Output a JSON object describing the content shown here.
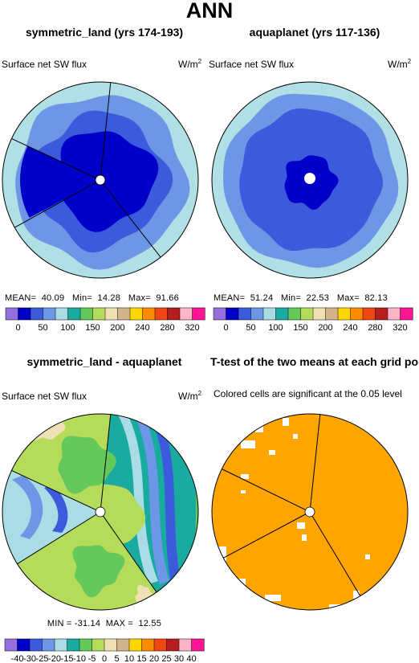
{
  "page_title": "ANN",
  "chart_data": [
    {
      "type": "heatmap",
      "title": "symmetric_land (yrs 174-193)",
      "variable": "Surface net SW flux",
      "units_text": "W/m",
      "units_exp": "2",
      "stats": {
        "mean": "40.09",
        "min": "14.28",
        "max": "91.66"
      },
      "stat_labels": {
        "mean": "MEAN=",
        "min": "Min=",
        "max": "Max="
      },
      "colorbar_ticks": [
        "0",
        "50",
        "100",
        "150",
        "200",
        "240",
        "280",
        "320"
      ],
      "colorbar_colors": [
        "#9370db",
        "#0000c8",
        "#3c5adc",
        "#6e96e6",
        "#aadce6",
        "#19aaa0",
        "#64c85a",
        "#b4dc5a",
        "#f0e1b4",
        "#d2b48c",
        "#ffd700",
        "#ff8c00",
        "#f04614",
        "#b41e1e",
        "#ffb4c8",
        "#ff1493"
      ],
      "levels": [
        "#b0e0e6",
        "#6e96e6",
        "#3c5adc",
        "#0000c8"
      ]
    },
    {
      "type": "heatmap",
      "title": "aquaplanet (yrs 117-136)",
      "variable": "Surface net SW flux",
      "units_text": "W/m",
      "units_exp": "2",
      "stats": {
        "mean": "51.24",
        "min": "22.53",
        "max": "82.13"
      },
      "stat_labels": {
        "mean": "MEAN=",
        "min": "Min=",
        "max": "Max="
      },
      "colorbar_ticks": [
        "0",
        "50",
        "100",
        "150",
        "200",
        "240",
        "280",
        "320"
      ],
      "colorbar_colors": [
        "#9370db",
        "#0000c8",
        "#3c5adc",
        "#6e96e6",
        "#aadce6",
        "#19aaa0",
        "#64c85a",
        "#b4dc5a",
        "#f0e1b4",
        "#d2b48c",
        "#ffd700",
        "#ff8c00",
        "#f04614",
        "#b41e1e",
        "#ffb4c8",
        "#ff1493"
      ],
      "levels": [
        "#b0e0e6",
        "#6e96e6",
        "#3c5adc",
        "#0000c8"
      ]
    },
    {
      "type": "heatmap",
      "title": "symmetric_land - aquaplanet",
      "variable": "Surface net SW flux",
      "units_text": "W/m",
      "units_exp": "2",
      "stats_text": "MIN = -31.14  MAX =  12.55",
      "colorbar_ticks": [
        "-40",
        "-30",
        "-25",
        "-20",
        "-15",
        "-10",
        "-5",
        "0",
        "5",
        "10",
        "15",
        "20",
        "25",
        "30",
        "40"
      ],
      "colorbar_colors": [
        "#9370db",
        "#0000c8",
        "#3c5adc",
        "#6e96e6",
        "#aadce6",
        "#19aaa0",
        "#64c85a",
        "#b4dc5a",
        "#f0e1b4",
        "#d2b48c",
        "#ffd700",
        "#ff8c00",
        "#f04614",
        "#b41e1e",
        "#ffb4c8",
        "#ff1493"
      ]
    },
    {
      "type": "heatmap",
      "title": "T-test of the two means at each grid point",
      "subtitle": "Colored cells are significant at the 0.05 level",
      "significant_color": "#ffa500"
    }
  ]
}
